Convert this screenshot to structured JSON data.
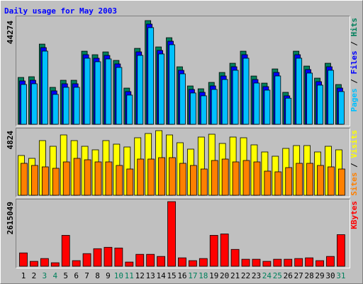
{
  "chart_data": [
    {
      "type": "bar",
      "title": "Daily usage for May 2003",
      "separator": " / ",
      "ylim": [
        0,
        44274
      ],
      "yticks": [
        44274
      ],
      "series": [
        {
          "name": "Hits",
          "color": "#00805c",
          "values": [
            20000,
            20300,
            34240,
            15760,
            18790,
            18790,
            31210,
            29700,
            30900,
            27270,
            15450,
            32420,
            44274,
            33030,
            36970,
            24540,
            16360,
            15150,
            17880,
            22120,
            26060,
            31210,
            20600,
            17570,
            23630,
            13640,
            31210,
            24850,
            19700,
            26060,
            16970
          ]
        },
        {
          "name": "Files",
          "color": "#0000ff",
          "values": [
            18500,
            18800,
            32740,
            14260,
            17290,
            17290,
            29710,
            28200,
            29400,
            25770,
            13950,
            30920,
            42770,
            31530,
            35470,
            23040,
            14860,
            13650,
            16380,
            20620,
            24560,
            29710,
            19100,
            16070,
            22130,
            12140,
            29710,
            23350,
            18200,
            24560,
            15470
          ]
        },
        {
          "name": "Pages",
          "color": "#00c0ff",
          "values": [
            17000,
            17300,
            31240,
            12760,
            15790,
            15790,
            28210,
            26700,
            27900,
            24270,
            12450,
            29420,
            41270,
            30030,
            33970,
            21540,
            13360,
            12150,
            14880,
            19120,
            23060,
            28210,
            17600,
            14570,
            20630,
            11140,
            28210,
            21850,
            16700,
            23060,
            13970
          ]
        }
      ]
    },
    {
      "type": "bar",
      "ylim": [
        0,
        4824
      ],
      "yticks": [
        4824
      ],
      "series": [
        {
          "name": "Visits",
          "color": "#ffff00",
          "values": [
            2968,
            2756,
            4081,
            3657,
            4505,
            4081,
            3657,
            3392,
            4081,
            3816,
            3604,
            4293,
            4611,
            4824,
            4505,
            3922,
            3445,
            4346,
            4558,
            3869,
            4346,
            4293,
            3763,
            3233,
            2915,
            3498,
            3710,
            3710,
            3233,
            3657,
            3392
          ]
        },
        {
          "name": "Sites",
          "color": "#ff8000",
          "values": [
            2385,
            2226,
            2120,
            2014,
            2491,
            2756,
            2650,
            2491,
            2491,
            2226,
            1961,
            2703,
            2703,
            2809,
            2809,
            2385,
            2226,
            1961,
            2597,
            2703,
            2491,
            2597,
            2491,
            1802,
            1749,
            2067,
            2385,
            2385,
            2226,
            2120,
            1961
          ]
        }
      ]
    },
    {
      "type": "bar",
      "ylim": [
        0,
        2615049
      ],
      "yticks": [
        2615049
      ],
      "categories": [
        "1",
        "2",
        "3",
        "4",
        "5",
        "6",
        "7",
        "8",
        "9",
        "10",
        "11",
        "12",
        "13",
        "14",
        "15",
        "16",
        "17",
        "18",
        "19",
        "20",
        "21",
        "22",
        "23",
        "24",
        "25",
        "26",
        "27",
        "28",
        "29",
        "30",
        "31"
      ],
      "category_colors": [
        "#000000",
        "#000000",
        "#00805c",
        "#00805c",
        "#000000",
        "#000000",
        "#000000",
        "#000000",
        "#000000",
        "#00805c",
        "#00805c",
        "#000000",
        "#000000",
        "#000000",
        "#000000",
        "#000000",
        "#00805c",
        "#00805c",
        "#000000",
        "#000000",
        "#000000",
        "#000000",
        "#000000",
        "#00805c",
        "#00805c",
        "#000000",
        "#000000",
        "#000000",
        "#000000",
        "#000000",
        "#00805c"
      ],
      "series": [
        {
          "name": "KBytes",
          "color": "#ff0000",
          "values": [
            540056,
            198968,
            312664,
            142120,
            1250656,
            227392,
            511632,
            710600,
            767448,
            739024,
            170544,
            483208,
            483208,
            397936,
            2615049,
            341088,
            227392,
            312664,
            1250656,
            1307504,
            682176,
            284240,
            284240,
            198968,
            284240,
            284240,
            312664,
            341088,
            227392,
            397936,
            1279080
          ]
        }
      ]
    }
  ]
}
